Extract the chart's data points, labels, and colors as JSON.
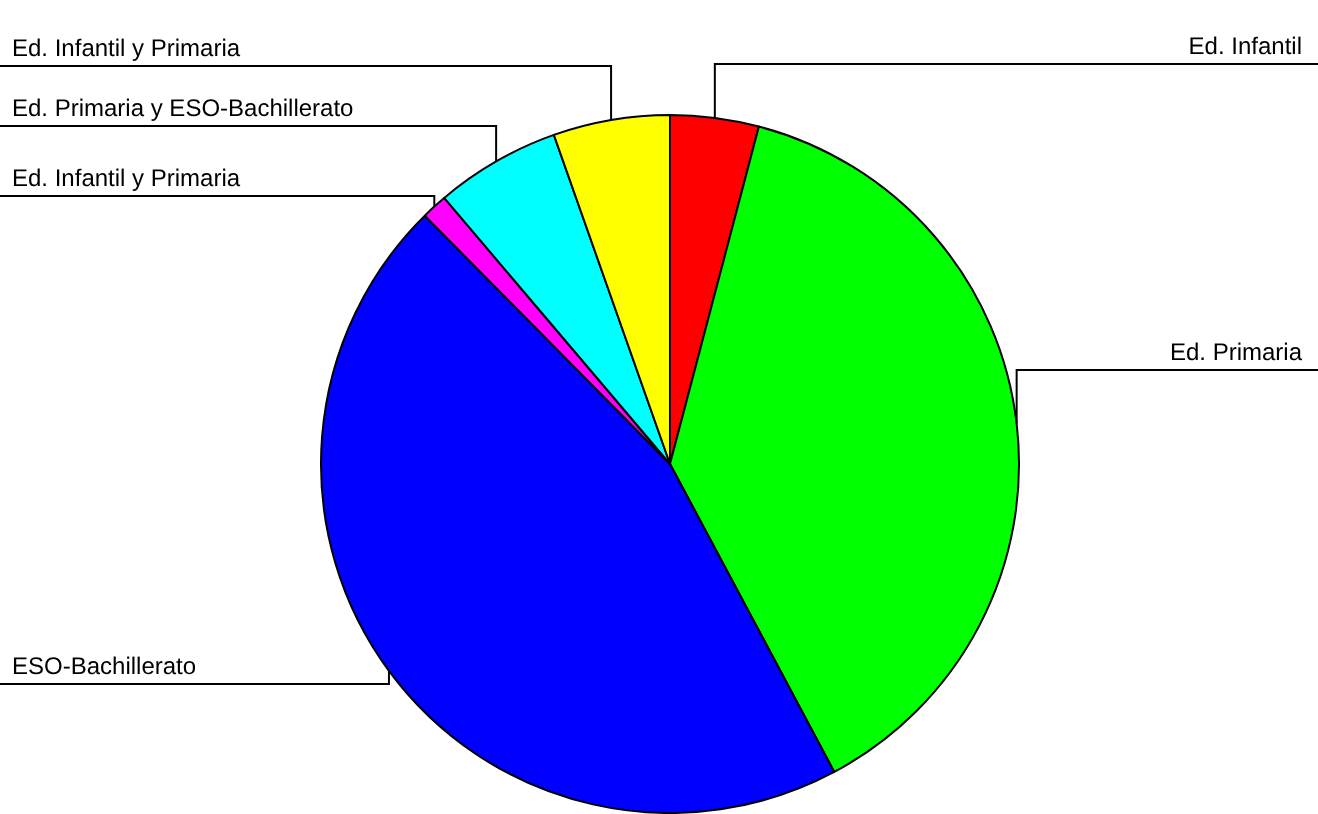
{
  "chart_data": {
    "type": "pie",
    "categories": [
      "Ed. Infantil",
      "Ed. Primaria",
      "ESO-Bachillerato",
      "Ed. Infantil y Primaria",
      "Ed. Primaria y ESO-Bachillerato",
      "Ed. Infantil y Primaria"
    ],
    "values": [
      4.1,
      38.1,
      45.4,
      1.2,
      5.8,
      5.4
    ],
    "colors": [
      "#ff0000",
      "#00ff00",
      "#0000ff",
      "#ff00ff",
      "#00ffff",
      "#ffff00"
    ],
    "legend": false
  }
}
